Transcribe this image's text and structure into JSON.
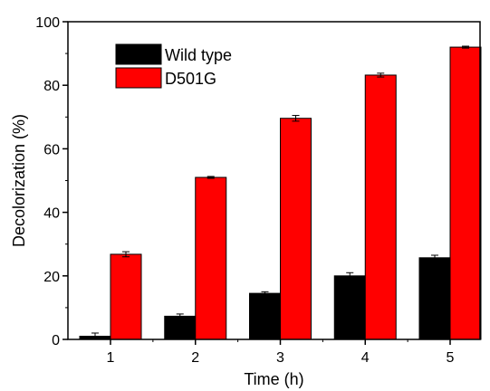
{
  "chart_data": {
    "type": "bar",
    "xlabel": "Time (h)",
    "ylabel": "Decolorization (%)",
    "categories": [
      "1",
      "2",
      "3",
      "4",
      "5"
    ],
    "ylim": [
      0,
      100
    ],
    "yticks": [
      "0",
      "20",
      "40",
      "60",
      "80",
      "100"
    ],
    "grid": false,
    "legend_position": "top-left",
    "series": [
      {
        "name": "Wild type",
        "color": "#000000",
        "values": [
          1.0,
          7.3,
          14.5,
          20.0,
          25.7
        ],
        "errors": [
          1.0,
          0.7,
          0.5,
          1.0,
          0.8
        ]
      },
      {
        "name": "D501G",
        "color": "#ff0000",
        "values": [
          26.8,
          51.0,
          69.6,
          83.2,
          92.0
        ],
        "errors": [
          0.8,
          0.3,
          0.9,
          0.6,
          0.3
        ]
      }
    ]
  }
}
